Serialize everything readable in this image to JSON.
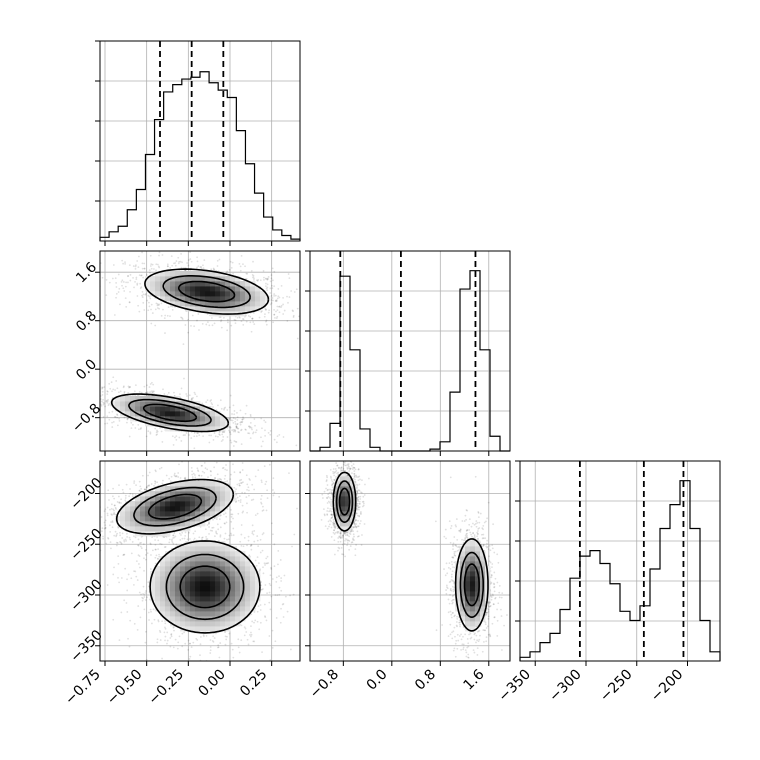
{
  "chart_data": {
    "type": "corner",
    "title": "",
    "parameters": [
      {
        "label": "",
        "ticks": [
          -0.75,
          -0.5,
          -0.25,
          0.0,
          0.25
        ],
        "tick_labels": [
          "−0.75",
          "−0.50",
          "−0.25",
          "0.00",
          "0.25"
        ],
        "range": [
          -0.78,
          0.42
        ]
      },
      {
        "label": "",
        "ticks": [
          -0.8,
          0.0,
          0.8,
          1.6
        ],
        "tick_labels": [
          "−0.8",
          "0.0",
          "0.8",
          "1.6"
        ],
        "range": [
          -1.35,
          1.95
        ]
      },
      {
        "label": "",
        "ticks": [
          -350,
          -300,
          -250,
          -200
        ],
        "tick_labels": [
          "−350",
          "−300",
          "−250",
          "−200"
        ],
        "range": [
          -365,
          -168
        ]
      }
    ],
    "diag_hist": [
      {
        "param": 0,
        "quantiles": [
          -0.42,
          -0.23,
          -0.04
        ],
        "counts": [
          0.02,
          0.05,
          0.08,
          0.17,
          0.28,
          0.47,
          0.66,
          0.81,
          0.85,
          0.88,
          0.89,
          0.92,
          0.86,
          0.82,
          0.78,
          0.6,
          0.42,
          0.26,
          0.13,
          0.06,
          0.03,
          0.01
        ]
      },
      {
        "param": 1,
        "quantiles": [
          -0.85,
          0.15,
          1.38
        ],
        "counts": [
          0.0,
          0.02,
          0.15,
          0.95,
          0.55,
          0.12,
          0.02,
          0.0,
          0.0,
          0.0,
          0.0,
          0.0,
          0.01,
          0.05,
          0.32,
          0.88,
          0.98,
          0.55,
          0.08,
          0.0
        ]
      },
      {
        "param": 2,
        "quantiles": [
          -306,
          -243,
          -204
        ],
        "counts": [
          0.02,
          0.05,
          0.1,
          0.15,
          0.28,
          0.45,
          0.57,
          0.6,
          0.53,
          0.42,
          0.27,
          0.22,
          0.3,
          0.5,
          0.72,
          0.85,
          0.98,
          0.72,
          0.22,
          0.05
        ]
      }
    ],
    "pairs": [
      {
        "x": 0,
        "y": 1,
        "modes": [
          {
            "mx": -0.14,
            "my": 1.28,
            "sx": 0.18,
            "sy": 0.18,
            "rho": -0.35,
            "w": 0.5
          },
          {
            "mx": -0.36,
            "my": -0.72,
            "sx": 0.17,
            "sy": 0.15,
            "rho": -0.55,
            "w": 0.5
          }
        ]
      },
      {
        "x": 0,
        "y": 2,
        "modes": [
          {
            "mx": -0.33,
            "my": -213,
            "sx": 0.17,
            "sy": 13,
            "rho": 0.45,
            "w": 0.5
          },
          {
            "mx": -0.15,
            "my": -292,
            "sx": 0.16,
            "sy": 22,
            "rho": 0.0,
            "w": 0.5
          }
        ]
      },
      {
        "x": 1,
        "y": 2,
        "modes": [
          {
            "mx": -0.78,
            "my": -208,
            "sx": 0.09,
            "sy": 14,
            "rho": 0.0,
            "w": 0.5
          },
          {
            "mx": 1.32,
            "my": -290,
            "sx": 0.13,
            "sy": 22,
            "rho": 0.0,
            "w": 0.5
          }
        ]
      }
    ],
    "contour_levels": [
      0.12,
      0.35,
      0.65
    ],
    "grid": true,
    "legend": "none"
  }
}
